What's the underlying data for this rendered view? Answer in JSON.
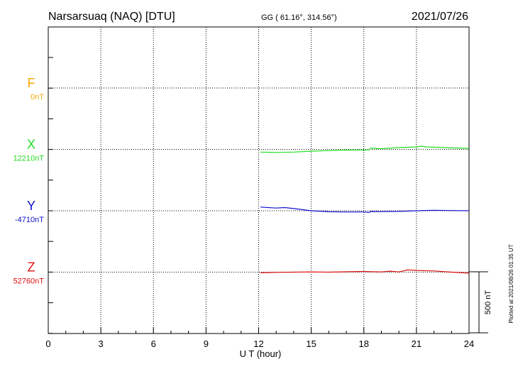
{
  "header": {
    "station": "Narsarsuaq (NAQ)  [DTU]",
    "coords": "GG ( 61.16°, 314.56°)",
    "date": "2021/07/26"
  },
  "footer": {
    "plotted": "Plotted at 2021/08/26 01:35 UT"
  },
  "chart_data": {
    "type": "line",
    "title": "Narsarsuaq (NAQ)  [DTU]",
    "xlabel": "U T (hour)",
    "xlim": [
      0,
      24
    ],
    "xticks": [
      "0",
      "3",
      "6",
      "9",
      "12",
      "15",
      "18",
      "21",
      "24"
    ],
    "grid": true,
    "scale_bar": {
      "label": "500 nT",
      "value_nT": 500
    },
    "series": [
      {
        "name": "F",
        "baseline": "0nT",
        "color": "#f5a800",
        "x": [],
        "y": []
      },
      {
        "name": "X",
        "baseline": "12210nT",
        "color": "#22dd22",
        "x": [
          12.1,
          13.0,
          14.0,
          15.0,
          16.0,
          17.0,
          18.0,
          18.3,
          18.4,
          19.0,
          20.0,
          21.0,
          21.3,
          21.6,
          22.0,
          23.0,
          24.0
        ],
        "y": [
          -22,
          -25,
          -22,
          -15,
          -10,
          -6,
          -5,
          -4,
          10,
          5,
          15,
          20,
          26,
          20,
          18,
          12,
          8
        ]
      },
      {
        "name": "Y",
        "baseline": "-4710nT",
        "color": "#1111cc",
        "x": [
          12.1,
          13.0,
          13.5,
          14.0,
          15.0,
          16.0,
          17.0,
          18.0,
          18.3,
          18.4,
          19.0,
          20.0,
          21.0,
          22.0,
          23.0,
          24.0
        ],
        "y": [
          30,
          22,
          26,
          18,
          0,
          -8,
          -10,
          -10,
          -14,
          -6,
          -7,
          -5,
          0,
          4,
          2,
          0
        ]
      },
      {
        "name": "Z",
        "baseline": "52760nT",
        "color": "#dd1111",
        "x": [
          12.1,
          13.0,
          14.0,
          15.0,
          16.0,
          17.0,
          18.0,
          19.0,
          19.5,
          20.0,
          20.5,
          21.0,
          22.0,
          23.0,
          24.0
        ],
        "y": [
          -5,
          -2,
          0,
          2,
          0,
          3,
          5,
          2,
          8,
          2,
          18,
          14,
          10,
          0,
          -8
        ]
      }
    ]
  }
}
